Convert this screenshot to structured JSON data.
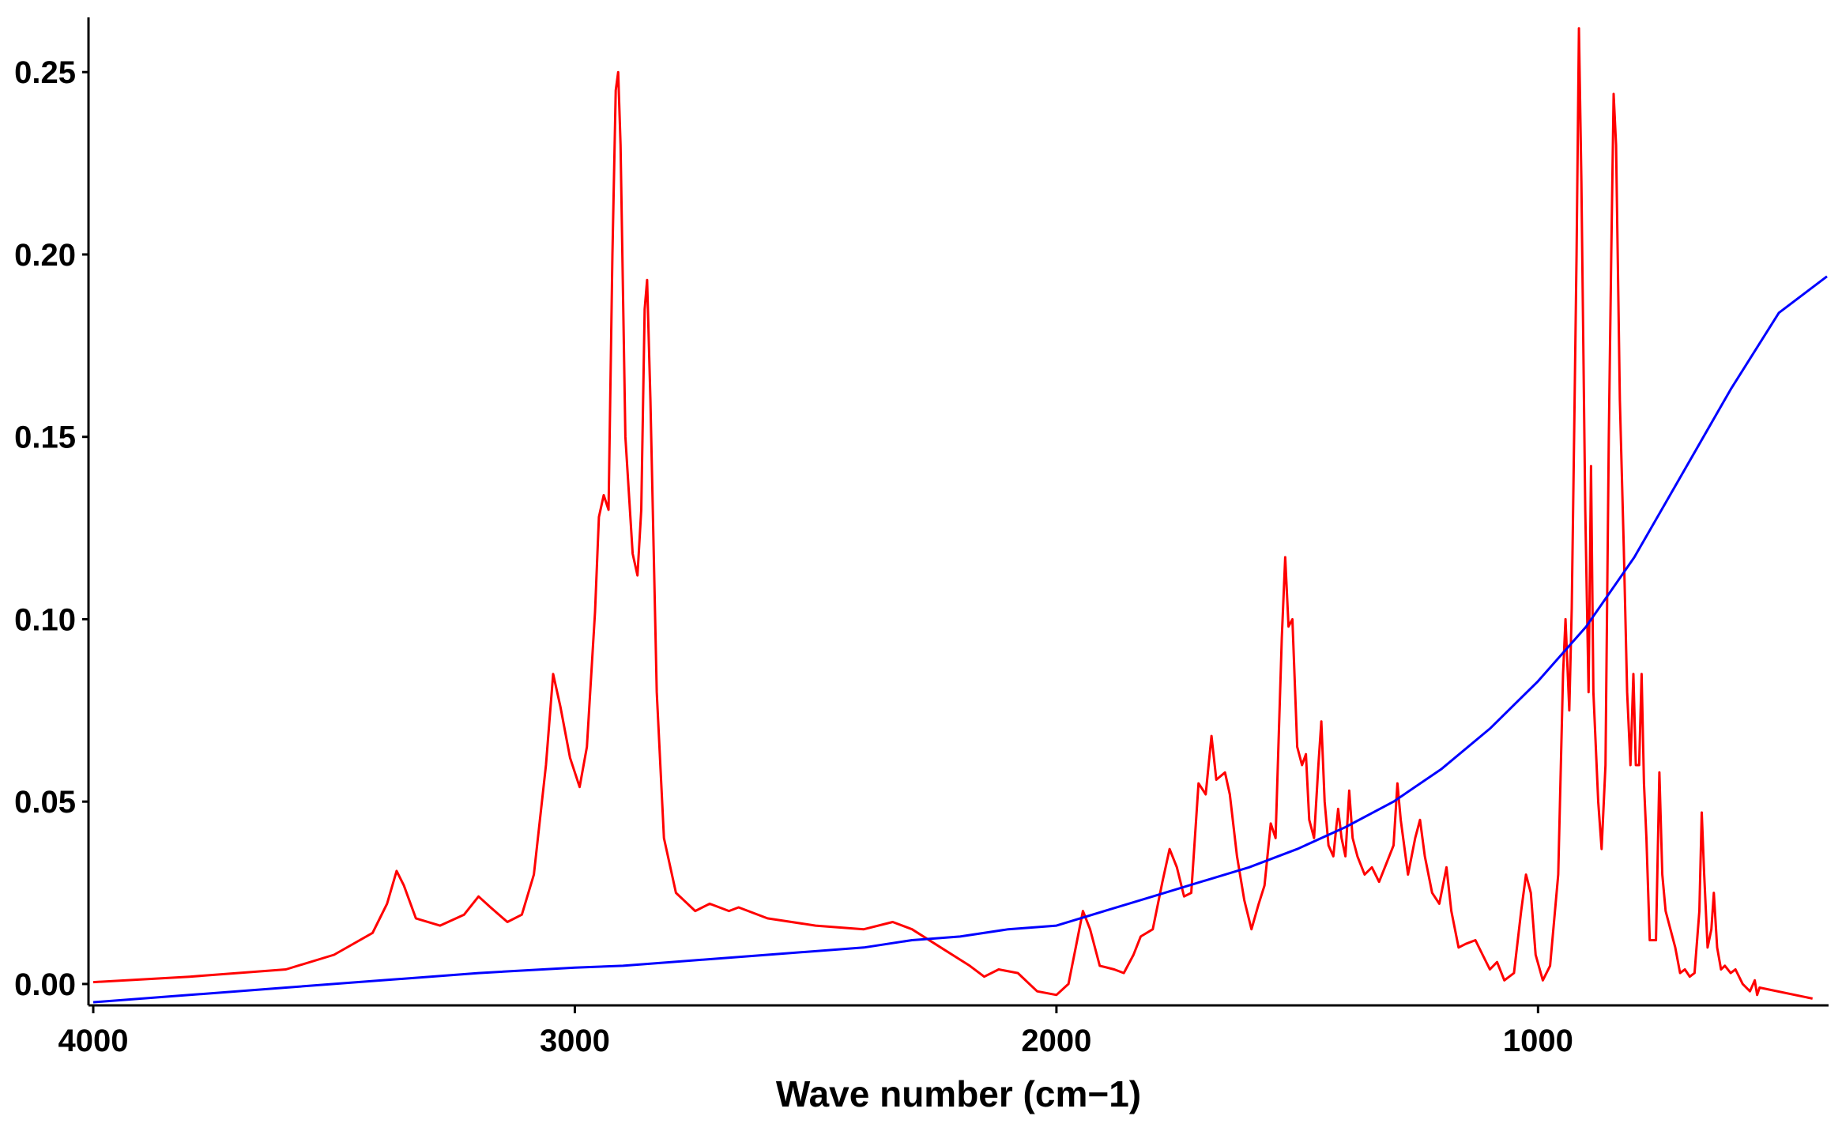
{
  "chart_data": {
    "type": "line",
    "title": "",
    "xlabel": "Wave number (cm−1)",
    "ylabel": "",
    "x_reversed": true,
    "xlim": [
      4000,
      400
    ],
    "ylim": [
      -0.005,
      0.265
    ],
    "x_ticks": [
      4000,
      3000,
      2000,
      1000
    ],
    "x_tick_labels": [
      "4000",
      "3000",
      "2000",
      "1000"
    ],
    "y_ticks": [
      0.0,
      0.05,
      0.1,
      0.15,
      0.2,
      0.25
    ],
    "y_tick_labels": [
      "0.00",
      "0.05",
      "0.10",
      "0.15",
      "0.20",
      "0.25"
    ],
    "grid": false,
    "legend": "none",
    "series": [
      {
        "color": "#ff0000",
        "points": [
          [
            4000,
            0.0005
          ],
          [
            3800,
            0.002
          ],
          [
            3600,
            0.004
          ],
          [
            3500,
            0.008
          ],
          [
            3420,
            0.014
          ],
          [
            3390,
            0.022
          ],
          [
            3370,
            0.031
          ],
          [
            3355,
            0.027
          ],
          [
            3330,
            0.018
          ],
          [
            3280,
            0.016
          ],
          [
            3230,
            0.019
          ],
          [
            3200,
            0.024
          ],
          [
            3175,
            0.021
          ],
          [
            3140,
            0.017
          ],
          [
            3110,
            0.019
          ],
          [
            3085,
            0.03
          ],
          [
            3060,
            0.06
          ],
          [
            3045,
            0.085
          ],
          [
            3030,
            0.076
          ],
          [
            3010,
            0.062
          ],
          [
            2990,
            0.054
          ],
          [
            2975,
            0.065
          ],
          [
            2958,
            0.102
          ],
          [
            2950,
            0.128
          ],
          [
            2940,
            0.134
          ],
          [
            2930,
            0.13
          ],
          [
            2922,
            0.2
          ],
          [
            2915,
            0.245
          ],
          [
            2910,
            0.25
          ],
          [
            2905,
            0.23
          ],
          [
            2895,
            0.15
          ],
          [
            2880,
            0.118
          ],
          [
            2870,
            0.112
          ],
          [
            2862,
            0.13
          ],
          [
            2855,
            0.185
          ],
          [
            2850,
            0.193
          ],
          [
            2843,
            0.16
          ],
          [
            2830,
            0.08
          ],
          [
            2815,
            0.04
          ],
          [
            2790,
            0.025
          ],
          [
            2750,
            0.02
          ],
          [
            2720,
            0.022
          ],
          [
            2680,
            0.02
          ],
          [
            2660,
            0.021
          ],
          [
            2600,
            0.018
          ],
          [
            2500,
            0.016
          ],
          [
            2400,
            0.015
          ],
          [
            2340,
            0.017
          ],
          [
            2300,
            0.015
          ],
          [
            2240,
            0.01
          ],
          [
            2180,
            0.005
          ],
          [
            2150,
            0.002
          ],
          [
            2120,
            0.004
          ],
          [
            2080,
            0.003
          ],
          [
            2040,
            -0.002
          ],
          [
            2000,
            -0.003
          ],
          [
            1975,
            0.0
          ],
          [
            1960,
            0.01
          ],
          [
            1945,
            0.02
          ],
          [
            1930,
            0.015
          ],
          [
            1910,
            0.005
          ],
          [
            1880,
            0.004
          ],
          [
            1860,
            0.003
          ],
          [
            1840,
            0.008
          ],
          [
            1825,
            0.013
          ],
          [
            1800,
            0.015
          ],
          [
            1780,
            0.028
          ],
          [
            1765,
            0.037
          ],
          [
            1750,
            0.032
          ],
          [
            1735,
            0.024
          ],
          [
            1720,
            0.025
          ],
          [
            1705,
            0.055
          ],
          [
            1690,
            0.052
          ],
          [
            1678,
            0.068
          ],
          [
            1668,
            0.056
          ],
          [
            1650,
            0.058
          ],
          [
            1640,
            0.052
          ],
          [
            1625,
            0.035
          ],
          [
            1610,
            0.023
          ],
          [
            1595,
            0.015
          ],
          [
            1580,
            0.022
          ],
          [
            1568,
            0.027
          ],
          [
            1555,
            0.044
          ],
          [
            1545,
            0.04
          ],
          [
            1532,
            0.095
          ],
          [
            1525,
            0.117
          ],
          [
            1518,
            0.098
          ],
          [
            1510,
            0.1
          ],
          [
            1500,
            0.065
          ],
          [
            1490,
            0.06
          ],
          [
            1482,
            0.063
          ],
          [
            1475,
            0.045
          ],
          [
            1465,
            0.04
          ],
          [
            1456,
            0.06
          ],
          [
            1450,
            0.072
          ],
          [
            1443,
            0.05
          ],
          [
            1435,
            0.038
          ],
          [
            1425,
            0.035
          ],
          [
            1415,
            0.048
          ],
          [
            1408,
            0.04
          ],
          [
            1400,
            0.035
          ],
          [
            1392,
            0.053
          ],
          [
            1385,
            0.04
          ],
          [
            1375,
            0.035
          ],
          [
            1360,
            0.03
          ],
          [
            1345,
            0.032
          ],
          [
            1330,
            0.028
          ],
          [
            1315,
            0.033
          ],
          [
            1300,
            0.038
          ],
          [
            1292,
            0.055
          ],
          [
            1285,
            0.045
          ],
          [
            1270,
            0.03
          ],
          [
            1255,
            0.04
          ],
          [
            1245,
            0.045
          ],
          [
            1235,
            0.035
          ],
          [
            1220,
            0.025
          ],
          [
            1205,
            0.022
          ],
          [
            1190,
            0.032
          ],
          [
            1180,
            0.02
          ],
          [
            1165,
            0.01
          ],
          [
            1150,
            0.011
          ],
          [
            1130,
            0.012
          ],
          [
            1115,
            0.008
          ],
          [
            1100,
            0.004
          ],
          [
            1085,
            0.006
          ],
          [
            1070,
            0.001
          ],
          [
            1050,
            0.003
          ],
          [
            1035,
            0.02
          ],
          [
            1025,
            0.03
          ],
          [
            1015,
            0.025
          ],
          [
            1005,
            0.008
          ],
          [
            990,
            0.001
          ],
          [
            975,
            0.005
          ],
          [
            958,
            0.03
          ],
          [
            948,
            0.085
          ],
          [
            943,
            0.1
          ],
          [
            935,
            0.075
          ],
          [
            930,
            0.103
          ],
          [
            925,
            0.15
          ],
          [
            920,
            0.2
          ],
          [
            915,
            0.262
          ],
          [
            910,
            0.22
          ],
          [
            902,
            0.13
          ],
          [
            895,
            0.08
          ],
          [
            890,
            0.142
          ],
          [
            885,
            0.08
          ],
          [
            875,
            0.05
          ],
          [
            868,
            0.037
          ],
          [
            860,
            0.06
          ],
          [
            853,
            0.15
          ],
          [
            848,
            0.2
          ],
          [
            843,
            0.244
          ],
          [
            838,
            0.23
          ],
          [
            830,
            0.16
          ],
          [
            822,
            0.12
          ],
          [
            815,
            0.08
          ],
          [
            808,
            0.06
          ],
          [
            802,
            0.085
          ],
          [
            797,
            0.06
          ],
          [
            790,
            0.06
          ],
          [
            785,
            0.085
          ],
          [
            780,
            0.055
          ],
          [
            775,
            0.04
          ],
          [
            768,
            0.012
          ],
          [
            755,
            0.012
          ],
          [
            748,
            0.058
          ],
          [
            742,
            0.03
          ],
          [
            735,
            0.02
          ],
          [
            725,
            0.015
          ],
          [
            715,
            0.01
          ],
          [
            705,
            0.003
          ],
          [
            695,
            0.004
          ],
          [
            685,
            0.002
          ],
          [
            675,
            0.003
          ],
          [
            665,
            0.02
          ],
          [
            660,
            0.047
          ],
          [
            655,
            0.03
          ],
          [
            648,
            0.01
          ],
          [
            640,
            0.015
          ],
          [
            635,
            0.025
          ],
          [
            628,
            0.01
          ],
          [
            620,
            0.004
          ],
          [
            612,
            0.005
          ],
          [
            600,
            0.003
          ],
          [
            590,
            0.004
          ],
          [
            575,
            0.0
          ],
          [
            560,
            -0.002
          ],
          [
            550,
            0.001
          ],
          [
            545,
            -0.003
          ],
          [
            540,
            -0.001
          ],
          [
            430,
            -0.004
          ]
        ]
      },
      {
        "color": "#0000ff",
        "points": [
          [
            4000,
            -0.005
          ],
          [
            3800,
            -0.003
          ],
          [
            3600,
            -0.001
          ],
          [
            3400,
            0.001
          ],
          [
            3200,
            0.003
          ],
          [
            3000,
            0.0045
          ],
          [
            2900,
            0.005
          ],
          [
            2800,
            0.006
          ],
          [
            2600,
            0.008
          ],
          [
            2400,
            0.01
          ],
          [
            2300,
            0.012
          ],
          [
            2200,
            0.013
          ],
          [
            2100,
            0.015
          ],
          [
            2000,
            0.016
          ],
          [
            1900,
            0.02
          ],
          [
            1800,
            0.024
          ],
          [
            1700,
            0.028
          ],
          [
            1600,
            0.032
          ],
          [
            1500,
            0.037
          ],
          [
            1400,
            0.043
          ],
          [
            1300,
            0.05
          ],
          [
            1200,
            0.059
          ],
          [
            1100,
            0.07
          ],
          [
            1000,
            0.083
          ],
          [
            900,
            0.098
          ],
          [
            800,
            0.117
          ],
          [
            700,
            0.14
          ],
          [
            600,
            0.163
          ],
          [
            500,
            0.184
          ],
          [
            400,
            0.194
          ]
        ]
      }
    ]
  }
}
